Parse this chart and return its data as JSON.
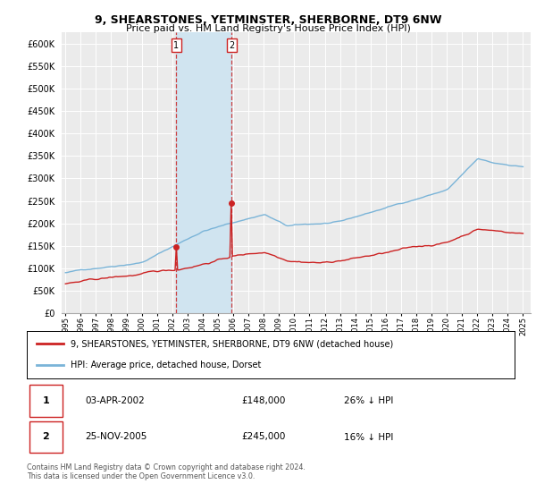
{
  "title1": "9, SHEARSTONES, YETMINSTER, SHERBORNE, DT9 6NW",
  "title2": "Price paid vs. HM Land Registry's House Price Index (HPI)",
  "ylim": [
    0,
    625000
  ],
  "yticks": [
    0,
    50000,
    100000,
    150000,
    200000,
    250000,
    300000,
    350000,
    400000,
    450000,
    500000,
    550000,
    600000
  ],
  "ytick_labels": [
    "£0",
    "£50K",
    "£100K",
    "£150K",
    "£200K",
    "£250K",
    "£300K",
    "£350K",
    "£400K",
    "£450K",
    "£500K",
    "£550K",
    "£600K"
  ],
  "hpi_color": "#7ab4d8",
  "price_color": "#cc2222",
  "sale1_date_num": 2002.25,
  "sale1_price": 148000,
  "sale2_date_num": 2005.9,
  "sale2_price": 245000,
  "legend_line1": "9, SHEARSTONES, YETMINSTER, SHERBORNE, DT9 6NW (detached house)",
  "legend_line2": "HPI: Average price, detached house, Dorset",
  "table_row1": [
    "1",
    "03-APR-2002",
    "£148,000",
    "26% ↓ HPI"
  ],
  "table_row2": [
    "2",
    "25-NOV-2005",
    "£245,000",
    "16% ↓ HPI"
  ],
  "footnote": "Contains HM Land Registry data © Crown copyright and database right 2024.\nThis data is licensed under the Open Government Licence v3.0.",
  "bg_color": "#ffffff",
  "plot_bg_color": "#ebebeb",
  "span_color": "#d0e4f0",
  "xmin": 1994.75,
  "xmax": 2025.5
}
